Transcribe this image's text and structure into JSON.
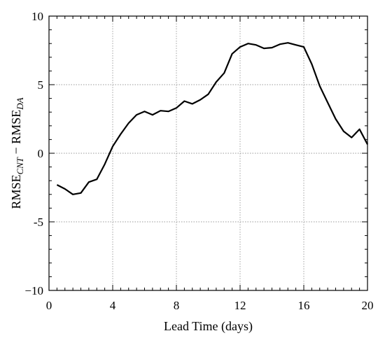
{
  "chart_data": {
    "type": "line",
    "title": "",
    "xlabel": "Lead Time (days)",
    "ylabel": {
      "parts": [
        {
          "text": "RMSE",
          "sub": false
        },
        {
          "text": "CNT",
          "sub": true
        },
        {
          "text": " − RMSE",
          "sub": false
        },
        {
          "text": "DA",
          "sub": true
        }
      ]
    },
    "xlim": [
      0,
      20
    ],
    "ylim": [
      -10,
      10
    ],
    "xticks": [
      0,
      4,
      8,
      12,
      16,
      20
    ],
    "xtick_labels": [
      "0",
      "4",
      "8",
      "12",
      "16",
      "20"
    ],
    "yticks": [
      -10,
      -5,
      0,
      5,
      10
    ],
    "ytick_labels": [
      "−10",
      "-5",
      "0",
      "5",
      "10"
    ],
    "x_minor_step": 0.5,
    "y_minor_step": 1,
    "grid": true,
    "line_color": "#000000",
    "series": [
      {
        "x": [
          0.5,
          1.0,
          1.5,
          2.0,
          2.5,
          3.0,
          3.5,
          4.0,
          4.5,
          5.0,
          5.5,
          6.0,
          6.5,
          7.0,
          7.5,
          8.0,
          8.5,
          9.0,
          9.5,
          10.0,
          10.5,
          11.0,
          11.5,
          12.0,
          12.5,
          13.0,
          13.5,
          14.0,
          14.5,
          15.0,
          15.5,
          16.0,
          16.5,
          17.0,
          17.5,
          18.0,
          18.5,
          19.0,
          19.5,
          20.0
        ],
        "values": [
          -2.3,
          -2.6,
          -3.0,
          -2.9,
          -2.1,
          -1.9,
          -0.8,
          0.5,
          1.4,
          2.2,
          2.8,
          3.05,
          2.8,
          3.1,
          3.05,
          3.3,
          3.8,
          3.6,
          3.9,
          4.3,
          5.2,
          5.85,
          7.25,
          7.75,
          8.0,
          7.9,
          7.65,
          7.7,
          7.95,
          8.05,
          7.9,
          7.75,
          6.5,
          4.9,
          3.7,
          2.5,
          1.6,
          1.15,
          1.75,
          0.65
        ]
      }
    ]
  }
}
